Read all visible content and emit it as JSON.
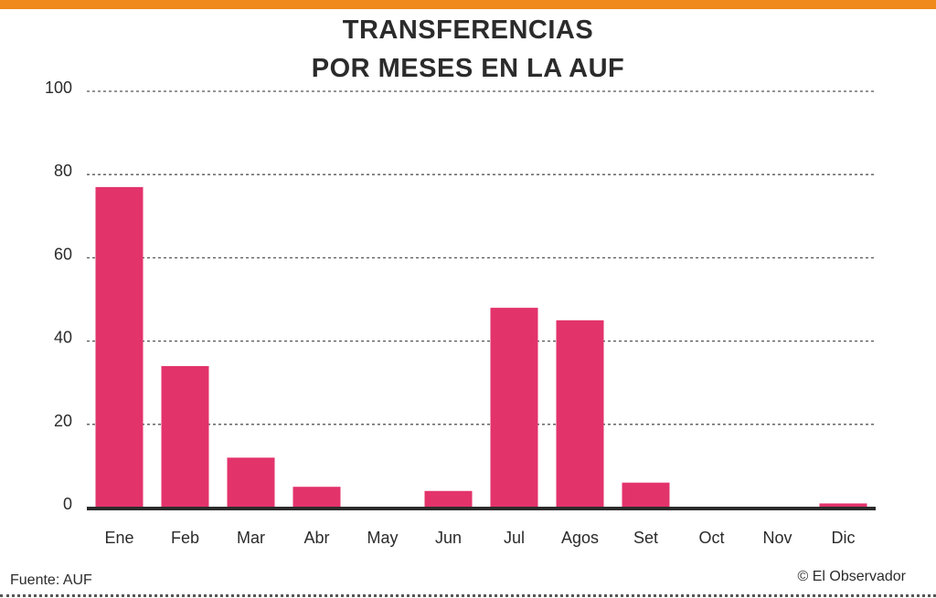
{
  "header": {
    "title_line1": "TRANSFERENCIAS",
    "title_line2": "POR MESES EN LA AUF"
  },
  "footer": {
    "source": "Fuente:  AUF",
    "credit": "© El Observador"
  },
  "colors": {
    "accent_bar": "#f08a1c",
    "bar": "#e3336b",
    "axis": "#2b2b2b",
    "grid": "#555555"
  },
  "chart_data": {
    "type": "bar",
    "title": "TRANSFERENCIAS POR MESES EN LA AUF",
    "xlabel": "",
    "ylabel": "",
    "ylim": [
      0,
      100
    ],
    "yticks": [
      0,
      20,
      40,
      60,
      80,
      100
    ],
    "grid": true,
    "categories": [
      "Ene",
      "Feb",
      "Mar",
      "Abr",
      "May",
      "Jun",
      "Jul",
      "Agos",
      "Set",
      "Oct",
      "Nov",
      "Dic"
    ],
    "values": [
      77,
      34,
      12,
      5,
      0,
      4,
      48,
      45,
      6,
      0,
      0,
      1
    ]
  }
}
